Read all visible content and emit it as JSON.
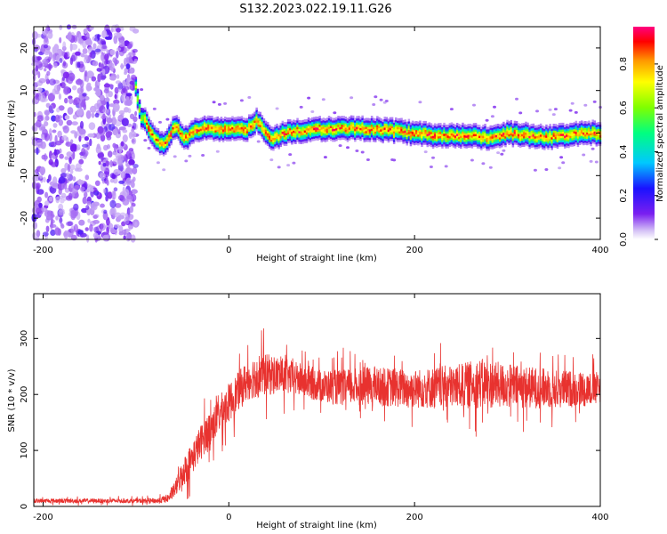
{
  "title": "S132.2023.022.19.11.G26",
  "chart_data": [
    {
      "type": "heatmap",
      "xlabel": "Height of straight line (km)",
      "ylabel": "Frequency (Hz)",
      "xlim": [
        -210,
        400
      ],
      "ylim": [
        -25,
        25
      ],
      "x_ticks": [
        -200,
        0,
        200,
        400
      ],
      "y_ticks": [
        -20,
        -10,
        0,
        10,
        20
      ],
      "colorbar": {
        "label": "Normalized spectral amplitude",
        "range": [
          0,
          0.97
        ],
        "ticks": [
          0.0,
          0.2,
          0.4,
          0.6,
          0.8
        ],
        "tick_labels": [
          "0.0",
          "0.2",
          "0.4",
          "0.6",
          "0.8"
        ]
      },
      "noise_region": {
        "x": [
          -210,
          -100
        ],
        "y": [
          -25,
          25
        ]
      },
      "ridge": {
        "x": [
          -100,
          -95,
          -90,
          -85,
          -80,
          -75,
          -70,
          -65,
          -60,
          -55,
          -50,
          -45,
          -40,
          -30,
          -20,
          -10,
          0,
          10,
          20,
          30,
          35,
          40,
          45,
          50,
          60,
          80,
          100,
          120,
          150,
          180,
          200,
          220,
          250,
          280,
          300,
          320,
          350,
          380,
          400
        ],
        "y": [
          11,
          4,
          3,
          1,
          -1,
          -2,
          -3,
          -1,
          1,
          2,
          -1,
          -1,
          0,
          1,
          1,
          1,
          1,
          1,
          1,
          3,
          2,
          0,
          -1,
          -1,
          0,
          0.5,
          1,
          1,
          1,
          0.5,
          0,
          -0.5,
          -0.5,
          -1,
          0,
          -0.5,
          -1,
          0,
          0
        ]
      }
    },
    {
      "type": "line",
      "xlabel": "Height of straight line (km)",
      "ylabel": "SNR (10 * v/v)",
      "xlim": [
        -210,
        400
      ],
      "ylim": [
        0,
        380
      ],
      "x_ticks": [
        -200,
        0,
        200,
        400
      ],
      "y_ticks": [
        0,
        100,
        200,
        300
      ],
      "color": "#e8322f",
      "series": [
        {
          "x": [
            -210,
            -150,
            -100,
            -75,
            -65,
            -60,
            -55,
            -50,
            -45,
            -40,
            -35,
            -30,
            -25,
            -20,
            -15,
            -10,
            -5,
            0,
            5,
            10,
            15,
            20,
            25,
            30,
            40,
            50,
            60,
            80,
            100,
            120,
            150,
            200,
            250,
            270,
            300,
            350,
            400
          ],
          "values": [
            10,
            10,
            10,
            10,
            15,
            25,
            40,
            60,
            70,
            85,
            100,
            115,
            130,
            140,
            150,
            165,
            175,
            185,
            195,
            205,
            215,
            225,
            230,
            235,
            235,
            235,
            232,
            225,
            215,
            212,
            215,
            210,
            215,
            220,
            215,
            210,
            210
          ],
          "noise_amplitude": [
            4,
            4,
            4,
            5,
            8,
            12,
            18,
            25,
            28,
            30,
            30,
            32,
            32,
            33,
            33,
            34,
            34,
            35,
            35,
            35,
            36,
            36,
            38,
            40,
            38,
            35,
            32,
            30,
            30,
            32,
            35,
            35,
            40,
            45,
            40,
            35,
            30
          ]
        }
      ]
    }
  ]
}
